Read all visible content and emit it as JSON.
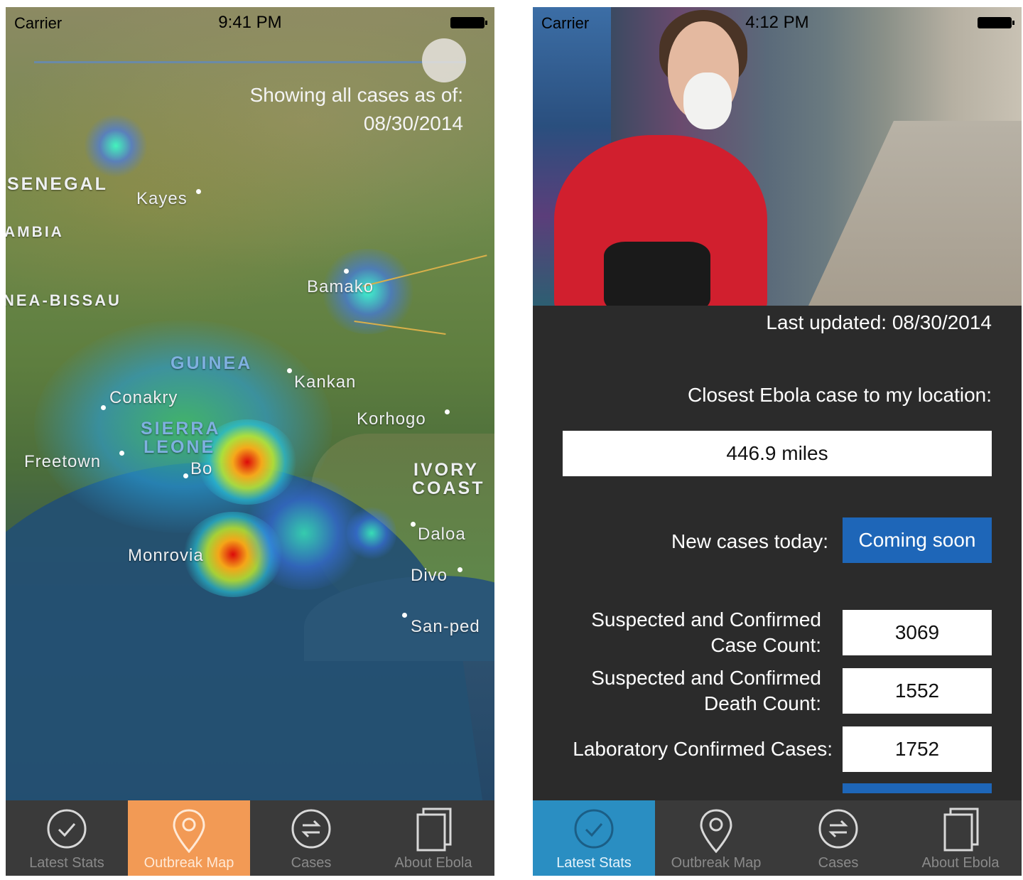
{
  "left_screen": {
    "status": {
      "carrier": "Carrier",
      "time": "9:41 PM"
    },
    "showing_line1": "Showing all cases as of:",
    "showing_date": "08/30/2014",
    "countries": [
      "SENEGAL",
      "AMBIA",
      "NEA-BISSAU",
      "GUINEA",
      "SIERRA",
      "LEONE",
      "IVORY",
      "COAST"
    ],
    "cities": [
      "Kayes",
      "Bamako",
      "Kankan",
      "Conakry",
      "Korhogo",
      "Freetown",
      "Bo",
      "Monrovia",
      "Daloa",
      "Divo",
      "San-ped"
    ],
    "tabs": [
      {
        "label": "Latest Stats",
        "icon": "check-circle-icon"
      },
      {
        "label": "Outbreak Map",
        "icon": "map-pin-icon"
      },
      {
        "label": "Cases",
        "icon": "exchange-circle-icon"
      },
      {
        "label": "About Ebola",
        "icon": "pages-icon"
      }
    ],
    "active_tab_color": "#f29a55"
  },
  "right_screen": {
    "status": {
      "carrier": "Carrier",
      "time": "4:12 PM"
    },
    "last_updated": "Last updated: 08/30/2014",
    "closest_label": "Closest Ebola case to my location:",
    "closest_value": "446.9 miles",
    "new_cases_label": "New cases today:",
    "new_cases_value": "Coming soon",
    "case_count_label_1": "Suspected and Confirmed",
    "case_count_label_2": "Case Count:",
    "case_count_value": "3069",
    "death_count_label_1": "Suspected and Confirmed",
    "death_count_label_2": "Death Count:",
    "death_count_value": "1552",
    "lab_label": "Laboratory Confirmed Cases:",
    "lab_value": "1752",
    "tabs": [
      {
        "label": "Latest Stats",
        "icon": "check-circle-icon"
      },
      {
        "label": "Outbreak Map",
        "icon": "map-pin-icon"
      },
      {
        "label": "Cases",
        "icon": "exchange-circle-icon"
      },
      {
        "label": "About Ebola",
        "icon": "pages-icon"
      }
    ],
    "active_tab_color": "#2a8ec2",
    "button_color": "#1e66b8"
  }
}
